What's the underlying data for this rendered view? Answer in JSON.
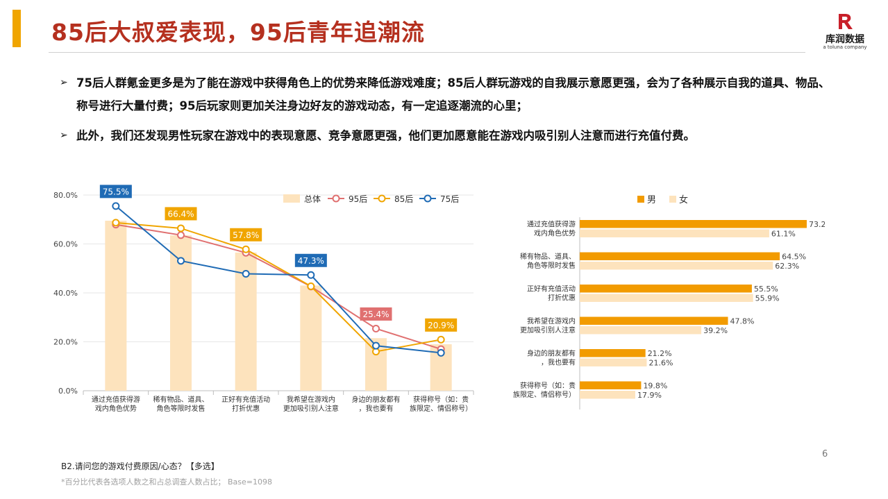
{
  "header": {
    "title": "85后大叔爱表现，95后青年追潮流",
    "logo": {
      "name": "库润数据",
      "sub": "a toluna company",
      "brand_color": "#c8202a"
    }
  },
  "bullets": [
    {
      "icon": "arrow-bullet-icon",
      "text": "75后人群氪金更多是为了能在游戏中获得角色上的优势来降低游戏难度；85后人群玩游戏的自我展示意愿更强，会为了各种展示自我的道具、物品、称号进行大量付费；95后玩家则更加关注身边好友的游戏动态，有一定追逐潮流的心里；"
    },
    {
      "icon": "arrow-bullet-icon",
      "text": "此外，我们还发现男性玩家在游戏中的表现意愿、竞争意愿更强，他们更加愿意能在游戏内吸引别人注意而进行充值付费。"
    }
  ],
  "chart_data": [
    {
      "type": "bar",
      "subtype": "bar+line",
      "categories": [
        "通过充值获得游戏内角色优势",
        "稀有物品、道具、角色等限时发售",
        "正好有充值活动打折优惠",
        "我希望在游戏内更加吸引别人注意",
        "身边的朋友都有，我也要有",
        "获得称号（如：贵族限定、情侣称号）"
      ],
      "category_lines": [
        [
          "通过充值获得游",
          "戏内角色优势"
        ],
        [
          "稀有物品、道具、",
          "角色等限时发售"
        ],
        [
          "正好有充值活动",
          "打折优惠"
        ],
        [
          "我希望在游戏内",
          "更加吸引别人注意"
        ],
        [
          "身边的朋友都有",
          "，我也要有"
        ],
        [
          "获得称号（如：贵",
          "族限定、情侣称号）"
        ]
      ],
      "series": [
        {
          "name": "总体",
          "kind": "bar",
          "color": "#fde3bd",
          "values": [
            69.5,
            63.5,
            56.5,
            43.0,
            21.5,
            19.0
          ]
        },
        {
          "name": "95后",
          "kind": "line",
          "color": "#e07070",
          "values": [
            67.9,
            63.6,
            56.4,
            42.6,
            25.4,
            17.0
          ]
        },
        {
          "name": "85后",
          "kind": "line",
          "color": "#f0a500",
          "values": [
            68.7,
            66.4,
            57.8,
            42.7,
            16.0,
            20.9
          ]
        },
        {
          "name": "75后",
          "kind": "line",
          "color": "#1f6bb5",
          "values": [
            75.5,
            53.1,
            47.8,
            47.3,
            18.4,
            15.5
          ]
        }
      ],
      "callouts": [
        {
          "text": "75.5%",
          "series": "75后",
          "index": 0
        },
        {
          "text": "66.4%",
          "series": "85后",
          "index": 1
        },
        {
          "text": "57.8%",
          "series": "85后",
          "index": 2
        },
        {
          "text": "47.3%",
          "series": "75后",
          "index": 3
        },
        {
          "text": "25.4%",
          "series": "95后",
          "index": 4
        },
        {
          "text": "20.9%",
          "series": "85后",
          "index": 5
        }
      ],
      "yticks": [
        "0.0%",
        "20.0%",
        "40.0%",
        "60.0%",
        "80.0%"
      ],
      "ylim": [
        0,
        80
      ],
      "grid": true,
      "legend": "top-right"
    },
    {
      "type": "bar",
      "orientation": "horizontal",
      "categories": [
        "通过充值获得游戏内角色优势",
        "稀有物品、道具、角色等限时发售",
        "正好有充值活动打折优惠",
        "我希望在游戏内更加吸引别人注意",
        "身边的朋友都有，我也要有",
        "获得称号（如：贵族限定、情侣称号）"
      ],
      "category_lines": [
        [
          "通过充值获得游",
          "戏内角色优势"
        ],
        [
          "稀有物品、道具、",
          "角色等限时发售"
        ],
        [
          "正好有充值活动",
          "打折优惠"
        ],
        [
          "我希望在游戏内",
          "更加吸引别人注意"
        ],
        [
          "身边的朋友都有",
          "，我也要有"
        ],
        [
          "获得称号（如：贵",
          "族限定、情侣称号）"
        ]
      ],
      "series": [
        {
          "name": "男",
          "color": "#f29b00",
          "values": [
            73.2,
            64.5,
            55.5,
            47.8,
            21.2,
            19.8
          ],
          "labels": [
            "73.2%",
            "64.5%",
            "55.5%",
            "47.8%",
            "21.2%",
            "19.8%"
          ]
        },
        {
          "name": "女",
          "color": "#fde3bd",
          "values": [
            61.1,
            62.3,
            55.9,
            39.2,
            21.6,
            17.9
          ],
          "labels": [
            "61.1%",
            "62.3%",
            "55.9%",
            "39.2%",
            "21.6%",
            "17.9%"
          ]
        }
      ],
      "xlim": [
        0,
        75
      ],
      "legend": "top-left"
    }
  ],
  "footer": {
    "question": "B2.请问您的游戏付费原因/心态？【多选】",
    "note": "*百分比代表各选项人数之和占总调查人数占比； Base=1098",
    "page": "6"
  }
}
